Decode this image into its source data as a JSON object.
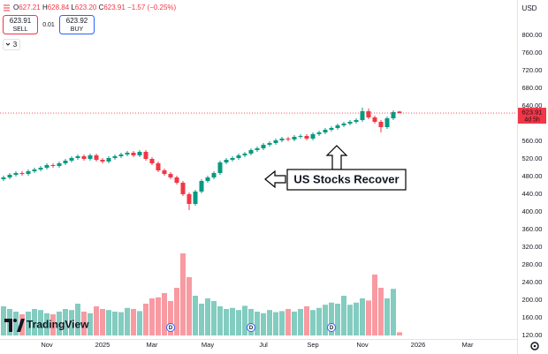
{
  "chart_data": {
    "type": "candlestick",
    "header": {
      "labels": [
        "O",
        "H",
        "L",
        "C"
      ],
      "values": [
        "627.21",
        "628.84",
        "623.20",
        "623.91"
      ],
      "change": "−1.57 (−0.25%)"
    },
    "trade": {
      "sell_price": 623.91,
      "sell": "SELL",
      "spread": 0.01,
      "buy_price": 623.92,
      "buy": "BUY",
      "lots": "3"
    },
    "currency": "USD",
    "countdown": "4d 5h",
    "annotation": "US Stocks Recover",
    "brand": "TradingView",
    "up_color": "#089981",
    "down_color": "#f23645",
    "volume_up_color": "rgba(8,153,129,0.5)",
    "volume_down_color": "rgba(242,54,69,0.5)",
    "ylim": [
      100,
      860
    ],
    "vlim": [
      0,
      160
    ],
    "yticks": [
      {
        "value": 800,
        "label": "800.00"
      },
      {
        "value": 760,
        "label": "760.00"
      },
      {
        "value": 720,
        "label": "720.00"
      },
      {
        "value": 680,
        "label": "680.00"
      },
      {
        "value": 640,
        "label": "640.00"
      },
      {
        "value": 560,
        "label": "560.00"
      },
      {
        "value": 520,
        "label": "520.00"
      },
      {
        "value": 480,
        "label": "480.00"
      },
      {
        "value": 440,
        "label": "440.00"
      },
      {
        "value": 400,
        "label": "400.00"
      },
      {
        "value": 360,
        "label": "360.00"
      },
      {
        "value": 320,
        "label": "320.00"
      },
      {
        "value": 280,
        "label": "280.00"
      },
      {
        "value": 240,
        "label": "240.00"
      },
      {
        "value": 200,
        "label": "200.00"
      },
      {
        "value": 160,
        "label": "160.00"
      },
      {
        "value": 120,
        "label": "120.00"
      }
    ],
    "categories": [
      null,
      null,
      null,
      null,
      null,
      null,
      null,
      "Nov",
      null,
      null,
      null,
      null,
      null,
      null,
      null,
      null,
      "2025",
      null,
      null,
      null,
      null,
      null,
      null,
      null,
      "Mar",
      null,
      null,
      null,
      null,
      null,
      null,
      null,
      null,
      "May",
      null,
      null,
      null,
      null,
      null,
      null,
      null,
      null,
      "Jul",
      null,
      null,
      null,
      null,
      null,
      null,
      null,
      "Sep",
      null,
      null,
      null,
      null,
      null,
      null,
      null,
      "Nov",
      null,
      null,
      null,
      null,
      null,
      null,
      null,
      null,
      "2026",
      null,
      null,
      null,
      null,
      null,
      null,
      null,
      "Mar"
    ],
    "open": [
      474,
      478,
      484,
      488,
      486,
      492,
      496,
      500,
      506,
      504,
      510,
      516,
      522,
      526,
      520,
      528,
      518,
      514,
      522,
      526,
      530,
      534,
      528,
      536,
      520,
      510,
      494,
      486,
      478,
      466,
      440,
      418,
      446,
      470,
      478,
      488,
      512,
      518,
      522,
      528,
      532,
      540,
      544,
      552,
      556,
      562,
      566,
      564,
      570,
      572,
      566,
      576,
      580,
      586,
      590,
      596,
      600,
      604,
      608,
      628,
      614,
      604,
      592,
      612,
      627.21,
      null,
      null,
      null,
      null,
      null,
      null,
      null,
      null,
      null,
      null,
      null
    ],
    "high": [
      482,
      488,
      492,
      492,
      496,
      500,
      504,
      510,
      510,
      514,
      520,
      526,
      530,
      530,
      532,
      532,
      522,
      526,
      530,
      534,
      538,
      538,
      540,
      540,
      524,
      514,
      498,
      490,
      482,
      470,
      444,
      450,
      474,
      482,
      492,
      516,
      522,
      526,
      532,
      536,
      544,
      548,
      556,
      560,
      566,
      570,
      570,
      574,
      576,
      576,
      580,
      584,
      590,
      594,
      600,
      604,
      608,
      612,
      636,
      634,
      618,
      608,
      616,
      630,
      628.84,
      null,
      null,
      null,
      null,
      null,
      null,
      null,
      null,
      null,
      null,
      null
    ],
    "low": [
      470,
      474,
      480,
      482,
      482,
      488,
      492,
      496,
      500,
      500,
      506,
      512,
      518,
      516,
      516,
      514,
      510,
      510,
      518,
      522,
      526,
      524,
      524,
      516,
      506,
      490,
      482,
      474,
      462,
      436,
      404,
      414,
      442,
      466,
      474,
      484,
      508,
      514,
      518,
      524,
      528,
      536,
      540,
      548,
      552,
      558,
      560,
      560,
      566,
      562,
      562,
      572,
      576,
      582,
      586,
      592,
      596,
      600,
      604,
      610,
      600,
      580,
      588,
      608,
      623.2,
      null,
      null,
      null,
      null,
      null,
      null,
      null,
      null,
      null,
      null,
      null
    ],
    "close": [
      478,
      484,
      488,
      486,
      492,
      496,
      500,
      506,
      504,
      510,
      516,
      522,
      526,
      520,
      528,
      518,
      514,
      522,
      526,
      530,
      534,
      528,
      536,
      520,
      510,
      494,
      486,
      478,
      466,
      440,
      418,
      446,
      470,
      478,
      488,
      512,
      518,
      522,
      528,
      532,
      540,
      544,
      552,
      556,
      562,
      566,
      564,
      570,
      572,
      566,
      576,
      580,
      586,
      590,
      596,
      600,
      604,
      608,
      628,
      614,
      604,
      592,
      612,
      626,
      623.91,
      null,
      null,
      null,
      null,
      null,
      null,
      null,
      null,
      null,
      null,
      null
    ],
    "volume": [
      55,
      50,
      45,
      40,
      45,
      50,
      48,
      42,
      40,
      45,
      50,
      48,
      60,
      45,
      42,
      55,
      50,
      48,
      45,
      44,
      52,
      50,
      46,
      60,
      70,
      72,
      80,
      65,
      90,
      155,
      110,
      75,
      60,
      70,
      65,
      55,
      50,
      52,
      48,
      56,
      50,
      45,
      42,
      48,
      44,
      46,
      50,
      45,
      50,
      55,
      48,
      52,
      58,
      62,
      60,
      75,
      58,
      62,
      70,
      66,
      115,
      90,
      70,
      88,
      6,
      null,
      null,
      null,
      null,
      null,
      null,
      null,
      null,
      null,
      null,
      null
    ],
    "dividends": [
      null,
      null,
      null,
      null,
      null,
      null,
      null,
      null,
      null,
      null,
      null,
      null,
      null,
      null,
      null,
      null,
      null,
      null,
      null,
      null,
      null,
      null,
      null,
      null,
      null,
      null,
      null,
      "D",
      null,
      null,
      null,
      null,
      null,
      null,
      null,
      null,
      null,
      null,
      null,
      null,
      "D",
      null,
      null,
      null,
      null,
      null,
      null,
      null,
      null,
      null,
      null,
      null,
      null,
      "D",
      null,
      null,
      null,
      null,
      null,
      null,
      null,
      null,
      null,
      null,
      null,
      null,
      null,
      null,
      null,
      null,
      null,
      null,
      null,
      null,
      null,
      null
    ]
  }
}
